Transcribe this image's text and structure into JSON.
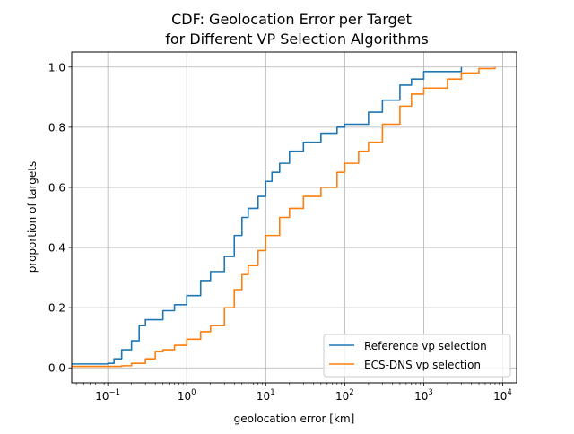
{
  "chart_data": {
    "type": "line",
    "title_line1": "CDF: Geolocation Error per Target",
    "title_line2": "for Different VP Selection Algorithms",
    "xlabel": "geolocation error [km]",
    "ylabel": "proportion of targets",
    "xscale": "log",
    "xlim": [
      0.035,
      15000
    ],
    "ylim": [
      -0.05,
      1.05
    ],
    "grid": true,
    "legend_position": "lower-right",
    "xticks": [
      {
        "value": 0.1,
        "base": "10",
        "exp": "−1"
      },
      {
        "value": 1,
        "base": "10",
        "exp": "0"
      },
      {
        "value": 10,
        "base": "10",
        "exp": "1"
      },
      {
        "value": 100,
        "base": "10",
        "exp": "2"
      },
      {
        "value": 1000,
        "base": "10",
        "exp": "3"
      },
      {
        "value": 10000,
        "base": "10",
        "exp": "4"
      }
    ],
    "yticks": [
      {
        "value": 0.0,
        "label": "0.0"
      },
      {
        "value": 0.2,
        "label": "0.2"
      },
      {
        "value": 0.4,
        "label": "0.4"
      },
      {
        "value": 0.6,
        "label": "0.6"
      },
      {
        "value": 0.8,
        "label": "0.8"
      },
      {
        "value": 1.0,
        "label": "1.0"
      }
    ],
    "series": [
      {
        "name": "Reference vp selection",
        "color": "#1f77b4",
        "points": [
          [
            0.035,
            0.013
          ],
          [
            0.1,
            0.015
          ],
          [
            0.12,
            0.03
          ],
          [
            0.15,
            0.06
          ],
          [
            0.2,
            0.09
          ],
          [
            0.25,
            0.14
          ],
          [
            0.3,
            0.16
          ],
          [
            0.5,
            0.19
          ],
          [
            0.7,
            0.21
          ],
          [
            1.0,
            0.24
          ],
          [
            1.5,
            0.29
          ],
          [
            2.0,
            0.32
          ],
          [
            3.0,
            0.37
          ],
          [
            4.0,
            0.44
          ],
          [
            5.0,
            0.5
          ],
          [
            6.0,
            0.53
          ],
          [
            8.0,
            0.57
          ],
          [
            10.0,
            0.62
          ],
          [
            12.0,
            0.65
          ],
          [
            15.0,
            0.68
          ],
          [
            20.0,
            0.72
          ],
          [
            30.0,
            0.75
          ],
          [
            50.0,
            0.78
          ],
          [
            80.0,
            0.8
          ],
          [
            100.0,
            0.81
          ],
          [
            200.0,
            0.85
          ],
          [
            300.0,
            0.89
          ],
          [
            500.0,
            0.94
          ],
          [
            700.0,
            0.96
          ],
          [
            1000.0,
            0.985
          ],
          [
            3000.0,
            1.0
          ]
        ]
      },
      {
        "name": "ECS-DNS vp selection",
        "color": "#ff7f0e",
        "points": [
          [
            0.035,
            0.005
          ],
          [
            0.15,
            0.007
          ],
          [
            0.2,
            0.015
          ],
          [
            0.3,
            0.03
          ],
          [
            0.4,
            0.055
          ],
          [
            0.5,
            0.06
          ],
          [
            0.7,
            0.075
          ],
          [
            1.0,
            0.095
          ],
          [
            1.5,
            0.12
          ],
          [
            2.0,
            0.14
          ],
          [
            3.0,
            0.2
          ],
          [
            4.0,
            0.26
          ],
          [
            5.0,
            0.31
          ],
          [
            6.0,
            0.34
          ],
          [
            8.0,
            0.39
          ],
          [
            10.0,
            0.44
          ],
          [
            15.0,
            0.5
          ],
          [
            20.0,
            0.53
          ],
          [
            30.0,
            0.57
          ],
          [
            50.0,
            0.6
          ],
          [
            80.0,
            0.65
          ],
          [
            100.0,
            0.68
          ],
          [
            150.0,
            0.72
          ],
          [
            200.0,
            0.75
          ],
          [
            300.0,
            0.81
          ],
          [
            500.0,
            0.87
          ],
          [
            700.0,
            0.91
          ],
          [
            1000.0,
            0.93
          ],
          [
            2000.0,
            0.96
          ],
          [
            3000.0,
            0.98
          ],
          [
            5000.0,
            0.995
          ],
          [
            8000.0,
            1.0
          ]
        ]
      }
    ]
  }
}
